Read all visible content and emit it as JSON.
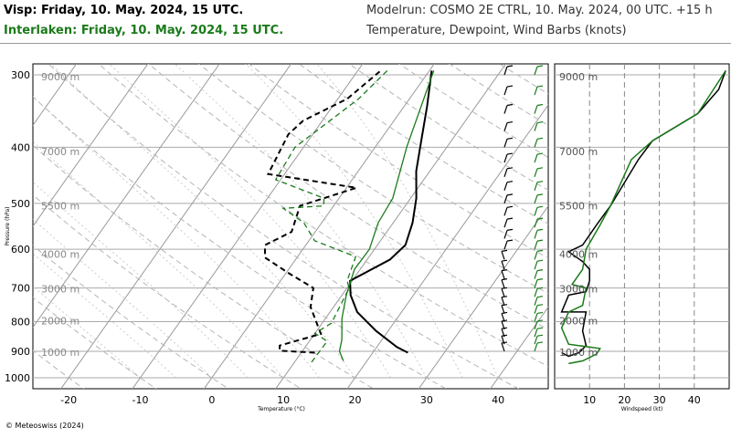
{
  "header": {
    "station_line": "Visp: Friday, 10. May. 2024, 15 UTC.",
    "compare_line": "Interlaken: Friday, 10. May. 2024, 15 UTC.",
    "model_line": "Modelrun: COSMO 2E CTRL, 10. May. 2024, 00 UTC. +15 h",
    "vars_line": "Temperature, Dewpoint, Wind Barbs (knots)"
  },
  "footer": {
    "credit": "© Meteoswiss (2024)"
  },
  "colors": {
    "visp": "#000000",
    "interlaken": "#1a7a1a",
    "grid": "#aaaaaa"
  },
  "chart_data": [
    {
      "type": "line",
      "title": "Temperature, Dewpoint, Wind Barbs (knots)",
      "xlabel": "Temperature (°C)",
      "ylabel": "Pressure (hPa)",
      "xlim": [
        -25,
        47
      ],
      "ylim": [
        1050,
        280
      ],
      "y_scale": "log",
      "x_ticks": [
        -20,
        -10,
        0,
        10,
        20,
        30,
        40
      ],
      "y_ticks": [
        300,
        400,
        500,
        600,
        700,
        800,
        900,
        1000
      ],
      "altitude_labels": [
        {
          "p": 302,
          "label": "9000 m"
        },
        {
          "p": 407,
          "label": "7000 m"
        },
        {
          "p": 505,
          "label": "5500 m"
        },
        {
          "p": 612,
          "label": "4000 m"
        },
        {
          "p": 702,
          "label": "3000 m"
        },
        {
          "p": 797,
          "label": "2000 m"
        },
        {
          "p": 903,
          "label": "1000 m"
        }
      ],
      "grid": true,
      "series": [
        {
          "name": "Visp",
          "kind": "temperature",
          "x": [
            24.9,
            22.8,
            18.3,
            13.8,
            11.2,
            9.7,
            13.2,
            13.9,
            12.7,
            10.8,
            8.1,
            5.8,
            3.2,
            0.3
          ],
          "y": [
            905,
            885,
            830,
            770,
            720,
            680,
            625,
            590,
            540,
            490,
            440,
            390,
            340,
            295
          ]
        },
        {
          "name": "Visp",
          "kind": "dewpoint",
          "x": [
            11.9,
            6.8,
            6.3,
            10.9,
            6.8,
            5.3,
            0.4,
            -4.5,
            -5.7,
            -3.3,
            -4.7,
            1.4,
            -12.3,
            -13.4,
            -12.7,
            -8.7,
            -6.8
          ],
          "y": [
            905,
            898,
            880,
            840,
            755,
            700,
            660,
            620,
            590,
            560,
            505,
            470,
            445,
            380,
            360,
            330,
            295
          ]
        },
        {
          "name": "Interlaken",
          "kind": "temperature",
          "x": [
            16.7,
            15.2,
            14.4,
            12.3,
            10.6,
            9.2,
            9.3,
            7.9,
            7.5,
            4.4,
            0.6
          ],
          "y": [
            935,
            900,
            860,
            790,
            720,
            650,
            600,
            540,
            490,
            400,
            295
          ]
        },
        {
          "name": "Interlaken",
          "kind": "dewpoint",
          "x": [
            12.4,
            12.5,
            11.6,
            10.0,
            11.3,
            10.3,
            9.3,
            8.1,
            0.8,
            -2.5,
            -6.8,
            -1.4,
            -2.1,
            -10.7,
            -11.2,
            -7.1,
            -5.9
          ],
          "y": [
            940,
            865,
            855,
            838,
            805,
            700,
            680,
            618,
            580,
            540,
            510,
            505,
            490,
            455,
            400,
            330,
            295
          ]
        }
      ]
    },
    {
      "type": "line",
      "xlabel": "Windspeed (kt)",
      "xlim": [
        0,
        50
      ],
      "x_ticks": [
        10,
        20,
        30,
        40
      ],
      "y_scale": "log",
      "ylim": [
        1050,
        280
      ],
      "grid": true,
      "series": [
        {
          "name": "Visp",
          "x": [
            2,
            4,
            7,
            9,
            8,
            9,
            2,
            4,
            9,
            10,
            10,
            8,
            4,
            8,
            12,
            16,
            24,
            28,
            41,
            47,
            49
          ],
          "y": [
            905,
            918,
            905,
            880,
            830,
            770,
            770,
            720,
            710,
            680,
            650,
            630,
            606,
            590,
            545,
            505,
            420,
            390,
            350,
            318,
            295
          ]
        },
        {
          "name": "Interlaken",
          "x": [
            4,
            8,
            12,
            13,
            4,
            2,
            4,
            8,
            9,
            5,
            8,
            9,
            13,
            16,
            22,
            28,
            41,
            49
          ],
          "y": [
            945,
            935,
            910,
            890,
            875,
            820,
            770,
            750,
            700,
            690,
            650,
            600,
            545,
            505,
            420,
            390,
            350,
            295
          ]
        }
      ]
    }
  ]
}
